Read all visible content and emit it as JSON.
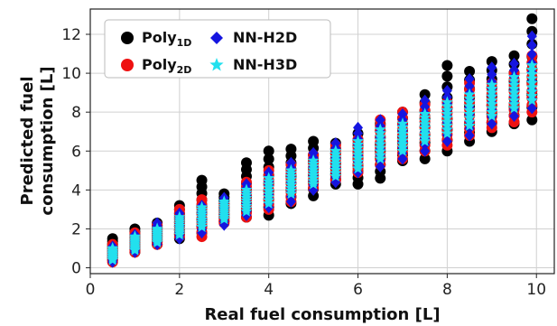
{
  "chart_data": {
    "type": "scatter",
    "title": "",
    "xlabel": "Real fuel consumption [L]",
    "ylabel_line1": "Predicted fuel",
    "ylabel_line2": "consumption [L]",
    "xlim": [
      0,
      10.4
    ],
    "ylim": [
      -0.3,
      13.3
    ],
    "xticks": [
      0,
      2,
      4,
      6,
      8,
      10
    ],
    "yticks": [
      0,
      2,
      4,
      6,
      8,
      10,
      12
    ],
    "grid": true,
    "legend_placement": "top-left",
    "x_values": [
      0.5,
      1.0,
      1.5,
      2.0,
      2.5,
      3.0,
      3.5,
      4.0,
      4.5,
      5.0,
      5.5,
      6.0,
      6.5,
      7.0,
      7.5,
      8.0,
      8.5,
      9.0,
      9.5,
      9.9
    ],
    "series": [
      {
        "name": "Poly",
        "name_sub": "1D",
        "color": "#000000",
        "marker": "circle",
        "ranges": [
          [
            0.4,
            1.5
          ],
          [
            0.8,
            2.0
          ],
          [
            1.2,
            2.3
          ],
          [
            1.5,
            3.2
          ],
          [
            1.8,
            4.5
          ],
          [
            2.4,
            3.8
          ],
          [
            2.6,
            5.4
          ],
          [
            2.7,
            6.0
          ],
          [
            3.3,
            6.1
          ],
          [
            3.7,
            6.5
          ],
          [
            4.3,
            6.4
          ],
          [
            4.3,
            6.9
          ],
          [
            4.6,
            7.4
          ],
          [
            5.5,
            8.0
          ],
          [
            5.6,
            8.9
          ],
          [
            6.0,
            10.4
          ],
          [
            6.5,
            10.1
          ],
          [
            7.0,
            10.6
          ],
          [
            7.4,
            10.9
          ],
          [
            7.6,
            12.8
          ]
        ]
      },
      {
        "name": "Poly",
        "name_sub": "2D",
        "color": "#ee1111",
        "marker": "circle",
        "ranges": [
          [
            0.3,
            1.2
          ],
          [
            0.8,
            1.8
          ],
          [
            1.2,
            2.2
          ],
          [
            1.6,
            3.0
          ],
          [
            1.6,
            3.5
          ],
          [
            2.3,
            3.3
          ],
          [
            2.6,
            4.4
          ],
          [
            3.0,
            5.0
          ],
          [
            3.4,
            5.3
          ],
          [
            4.1,
            5.8
          ],
          [
            4.5,
            6.3
          ],
          [
            4.9,
            6.6
          ],
          [
            5.3,
            7.6
          ],
          [
            5.6,
            8.0
          ],
          [
            6.0,
            8.4
          ],
          [
            6.3,
            8.5
          ],
          [
            6.8,
            9.5
          ],
          [
            7.2,
            9.5
          ],
          [
            7.5,
            10.0
          ],
          [
            8.0,
            10.9
          ]
        ]
      },
      {
        "name": "NN-H2D",
        "name_sub": "",
        "color": "#1515e0",
        "marker": "diamond",
        "ranges": [
          [
            0.3,
            1.1
          ],
          [
            0.8,
            1.7
          ],
          [
            1.2,
            2.3
          ],
          [
            1.5,
            2.8
          ],
          [
            1.8,
            3.2
          ],
          [
            2.2,
            3.6
          ],
          [
            2.7,
            4.3
          ],
          [
            3.1,
            4.9
          ],
          [
            3.4,
            5.4
          ],
          [
            4.0,
            5.9
          ],
          [
            4.4,
            6.4
          ],
          [
            4.9,
            7.2
          ],
          [
            5.2,
            7.6
          ],
          [
            5.6,
            7.9
          ],
          [
            6.0,
            8.6
          ],
          [
            6.5,
            9.1
          ],
          [
            6.8,
            9.7
          ],
          [
            7.4,
            10.3
          ],
          [
            7.8,
            10.5
          ],
          [
            8.2,
            11.9
          ]
        ]
      },
      {
        "name": "NN-H3D",
        "name_sub": "",
        "color": "#22e0ee",
        "marker": "star",
        "ranges": [
          [
            0.4,
            1.0
          ],
          [
            0.9,
            1.6
          ],
          [
            1.3,
            2.0
          ],
          [
            1.7,
            2.6
          ],
          [
            2.1,
            3.1
          ],
          [
            2.5,
            3.4
          ],
          [
            2.9,
            4.0
          ],
          [
            3.3,
            4.6
          ],
          [
            3.8,
            5.0
          ],
          [
            4.3,
            5.5
          ],
          [
            4.7,
            6.0
          ],
          [
            5.1,
            6.5
          ],
          [
            5.6,
            7.1
          ],
          [
            6.0,
            7.4
          ],
          [
            6.5,
            7.9
          ],
          [
            6.9,
            8.5
          ],
          [
            7.3,
            8.9
          ],
          [
            7.8,
            9.4
          ],
          [
            8.2,
            9.8
          ],
          [
            8.6,
            10.4
          ]
        ]
      }
    ]
  }
}
